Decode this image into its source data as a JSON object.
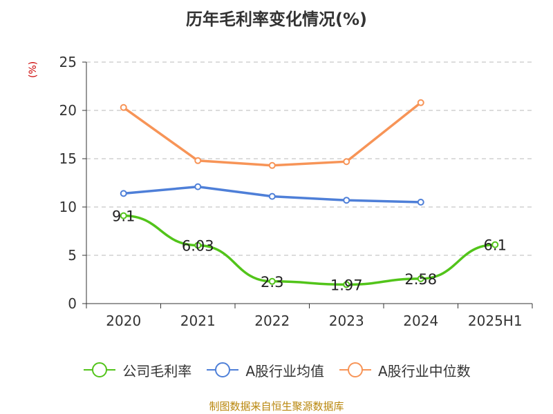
{
  "chart_data": {
    "type": "line",
    "title": "历年毛利率变化情况(%)",
    "ylabel": "(%)",
    "categories": [
      "2020",
      "2021",
      "2022",
      "2023",
      "2024",
      "2025H1"
    ],
    "ylim": [
      0,
      25
    ],
    "yticks": [
      0,
      5,
      10,
      15,
      20,
      25
    ],
    "grid": true,
    "legend_position": "bottom",
    "series": [
      {
        "name": "公司毛利率",
        "color": "#52c41a",
        "values": [
          9.1,
          6.03,
          2.3,
          1.97,
          2.58,
          6.1
        ],
        "data_labels": [
          "9.1",
          "6.03",
          "2.3",
          "1.97",
          "2.58",
          "6.1"
        ]
      },
      {
        "name": "A股行业均值",
        "color": "#4e7fd8",
        "values": [
          11.4,
          12.1,
          11.1,
          10.7,
          10.5,
          null
        ]
      },
      {
        "name": "A股行业中位数",
        "color": "#f79457",
        "values": [
          20.3,
          14.8,
          14.3,
          14.7,
          20.8,
          null
        ]
      }
    ],
    "source": "制图数据来自恒生聚源数据库"
  }
}
